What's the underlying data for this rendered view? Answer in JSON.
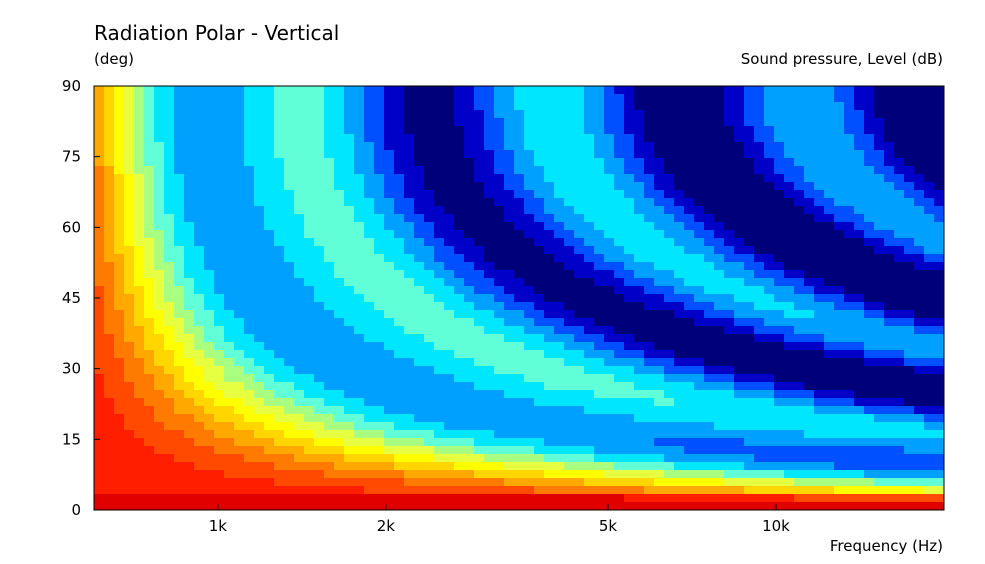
{
  "chart_data": {
    "type": "heatmap",
    "title": "Radiation Polar - Vertical",
    "ylabel": "(deg)",
    "xlabel": "Frequency  (Hz)",
    "colorbar_label": "Sound pressure, Level  (dB)",
    "x_scale": "log",
    "xlim": [
      600,
      20000
    ],
    "ylim": [
      0,
      90
    ],
    "x_ticks": [
      {
        "value": 1000,
        "label": "1k"
      },
      {
        "value": 2000,
        "label": "2k"
      },
      {
        "value": 5000,
        "label": "5k"
      },
      {
        "value": 10000,
        "label": "10k"
      }
    ],
    "y_ticks": [
      {
        "value": 0,
        "label": "0"
      },
      {
        "value": 15,
        "label": "15"
      },
      {
        "value": 30,
        "label": "30"
      },
      {
        "value": 45,
        "label": "45"
      },
      {
        "value": 60,
        "label": "60"
      },
      {
        "value": 75,
        "label": "75"
      },
      {
        "value": 90,
        "label": "90"
      }
    ],
    "colormap": [
      "#00007a",
      "#0000c8",
      "#0050ff",
      "#00a0ff",
      "#00e6ff",
      "#60ffd8",
      "#a8ff80",
      "#e6ff40",
      "#ffff00",
      "#ffd600",
      "#ffa800",
      "#ff7a00",
      "#ff4a00",
      "#ff1e00",
      "#e00000"
    ],
    "legend": "none",
    "grid": false
  }
}
